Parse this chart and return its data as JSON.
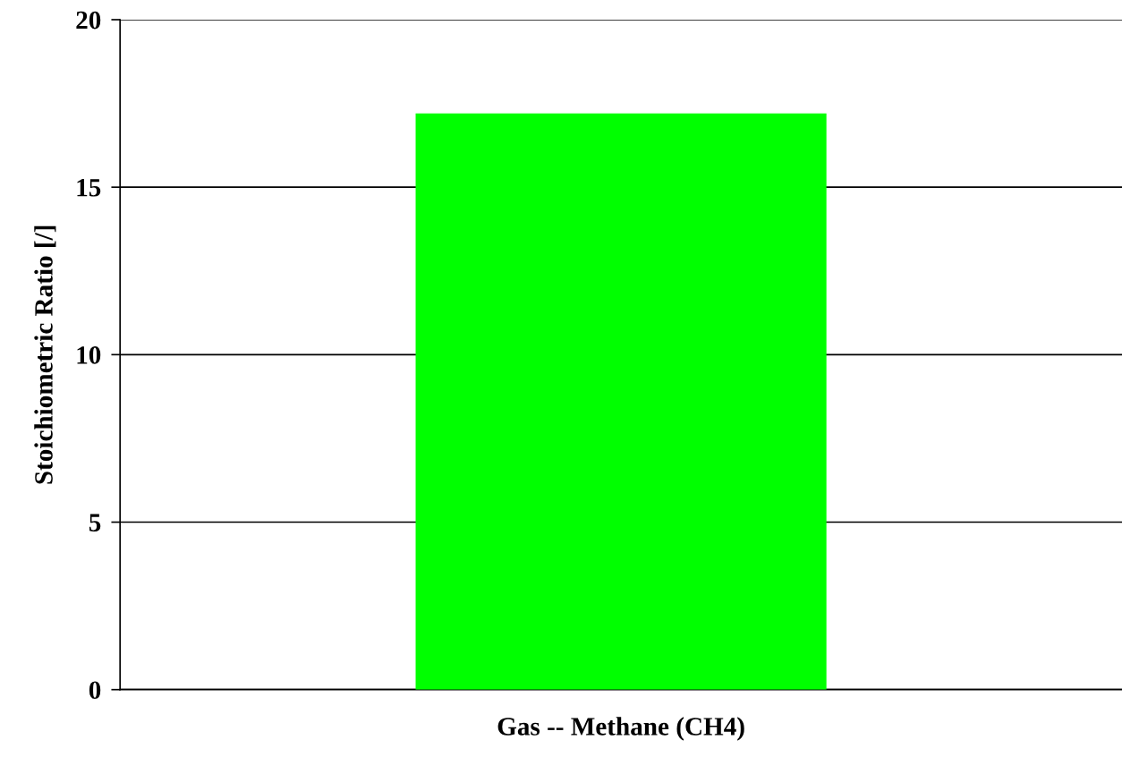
{
  "chart_data": {
    "type": "bar",
    "ylabel": "Stoichiometric Ratio [/]",
    "categories": [
      "Gas -- Methane (CH4)"
    ],
    "values": [
      17.2
    ],
    "color": "#00ff00",
    "ylim": [
      0,
      20
    ],
    "yticks": [
      0,
      5,
      10,
      15,
      20
    ],
    "grid": "y",
    "legend": false
  }
}
